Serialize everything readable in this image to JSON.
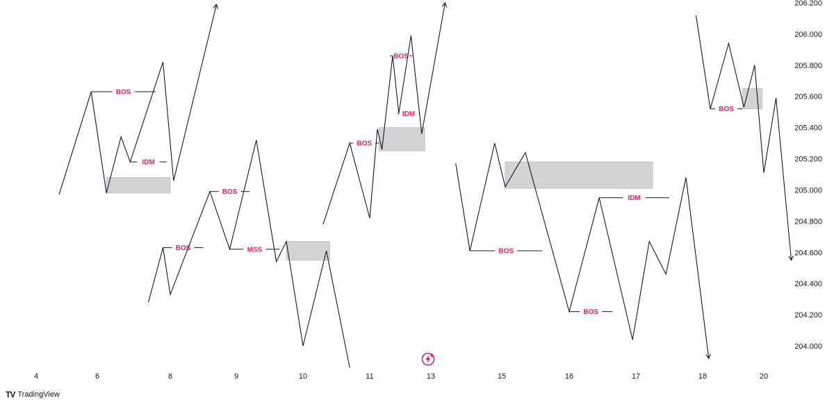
{
  "chart_data": {
    "type": "line",
    "title": "",
    "xlabel": "",
    "ylabel": "",
    "x_ticks": [
      4,
      6,
      8,
      9,
      10,
      11,
      13,
      15,
      16,
      17,
      18,
      20
    ],
    "y_ticks": [
      "206.200",
      "206.000",
      "205.800",
      "205.600",
      "205.400",
      "205.200",
      "205.000",
      "204.800",
      "204.600",
      "204.400",
      "204.200",
      "204.000"
    ],
    "y_range": [
      203.9,
      206.2
    ],
    "grid": false,
    "legend": "none",
    "line_color": "#131722",
    "marker_color": "#e91e63",
    "zone_color": "#d3d3d3",
    "series": [
      {
        "points": [
          [
            4.75,
            204.97
          ],
          [
            5.8,
            205.63
          ],
          [
            6.25,
            204.98
          ],
          [
            6.65,
            205.34
          ],
          [
            6.9,
            205.18
          ],
          [
            7.8,
            205.82
          ],
          [
            8.05,
            205.06
          ],
          [
            8.7,
            206.19
          ]
        ],
        "arrow_end": true
      },
      {
        "points": [
          [
            7.4,
            204.28
          ],
          [
            7.8,
            204.63
          ],
          [
            8.0,
            204.33
          ],
          [
            8.6,
            204.99
          ],
          [
            8.9,
            204.62
          ],
          [
            9.3,
            205.32
          ],
          [
            9.6,
            204.54
          ],
          [
            9.75,
            204.67
          ],
          [
            10.0,
            204.0
          ],
          [
            10.35,
            204.61
          ],
          [
            10.7,
            203.86
          ]
        ],
        "arrow_end": false
      },
      {
        "points": [
          [
            10.3,
            204.78
          ],
          [
            10.7,
            205.3
          ],
          [
            11.0,
            204.82
          ],
          [
            11.25,
            205.39
          ],
          [
            11.4,
            205.26
          ],
          [
            11.75,
            205.86
          ],
          [
            11.95,
            205.49
          ],
          [
            12.35,
            205.99
          ],
          [
            12.7,
            205.36
          ],
          [
            13.4,
            206.2
          ]
        ],
        "arrow_end": true
      },
      {
        "points": [
          [
            13.7,
            205.17
          ],
          [
            14.1,
            204.61
          ],
          [
            14.8,
            205.3
          ],
          [
            15.05,
            205.02
          ],
          [
            15.35,
            205.24
          ],
          [
            16.0,
            204.22
          ],
          [
            16.45,
            204.95
          ],
          [
            16.95,
            204.04
          ],
          [
            17.2,
            204.67
          ],
          [
            17.45,
            204.46
          ],
          [
            17.75,
            205.08
          ],
          [
            18.2,
            203.92
          ]
        ],
        "arrow_end": true
      },
      {
        "points": [
          [
            17.9,
            206.12
          ],
          [
            18.25,
            205.52
          ],
          [
            18.85,
            205.94
          ],
          [
            19.35,
            205.53
          ],
          [
            19.7,
            205.8
          ],
          [
            20.0,
            205.11
          ],
          [
            20.4,
            205.59
          ],
          [
            20.9,
            204.55
          ]
        ],
        "arrow_end": true
      }
    ],
    "zones": [
      {
        "x0": 6.25,
        "x1": 8.0,
        "y0": 204.98,
        "y1": 205.08
      },
      {
        "x0": 9.75,
        "x1": 10.4,
        "y0": 204.55,
        "y1": 204.67
      },
      {
        "x0": 11.3,
        "x1": 12.8,
        "y0": 205.25,
        "y1": 205.4
      },
      {
        "x0": 15.05,
        "x1": 17.25,
        "y0": 205.01,
        "y1": 205.18
      },
      {
        "x0": 19.3,
        "x1": 19.95,
        "y0": 205.52,
        "y1": 205.65
      }
    ],
    "markers": [
      {
        "label": "BOS",
        "x0": 5.8,
        "x1": 7.6,
        "y": 205.63
      },
      {
        "label": "IDM",
        "x0": 6.9,
        "x1": 7.9,
        "y": 205.18
      },
      {
        "label": "BOS",
        "x0": 7.8,
        "x1": 8.5,
        "y": 204.63
      },
      {
        "label": "BOS",
        "x0": 8.6,
        "x1": 9.2,
        "y": 204.99
      },
      {
        "label": "MSS",
        "x0": 8.9,
        "x1": 9.65,
        "y": 204.62
      },
      {
        "label": "BOS",
        "x0": 10.7,
        "x1": 11.3,
        "y": 205.3
      },
      {
        "label": "BOS",
        "x0": 11.75,
        "x1": 12.3,
        "y": 205.86
      },
      {
        "label": "IDM",
        "x0": 11.95,
        "x1": 12.6,
        "y": 205.49
      },
      {
        "label": "BOS",
        "x0": 14.1,
        "x1": 15.6,
        "y": 204.61
      },
      {
        "label": "BOS",
        "x0": 16.0,
        "x1": 16.65,
        "y": 204.22
      },
      {
        "label": "IDM",
        "x0": 16.45,
        "x1": 17.5,
        "y": 204.95
      },
      {
        "label": "BOS",
        "x0": 18.25,
        "x1": 19.3,
        "y": 205.52
      }
    ]
  },
  "footer": {
    "brand_mark": "TV",
    "brand_name": "TradingView"
  },
  "icons": {
    "action": "lightning-icon"
  }
}
